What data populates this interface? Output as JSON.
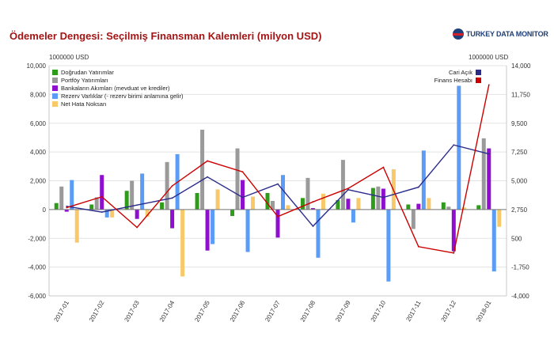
{
  "title": "Ödemeler Dengesi: Seçilmiş Finansman Kalemleri (milyon USD)",
  "brand": "TURKEY DATA MONITOR",
  "chart_data": {
    "type": "bar",
    "categories": [
      "2017-01",
      "2017-02",
      "2017-03",
      "2017-04",
      "2017-05",
      "2017-06",
      "2017-07",
      "2017-08",
      "2017-09",
      "2017-10",
      "2017-11",
      "2017-12",
      "2018-01"
    ],
    "left_axis": {
      "unit_label": "1000000 USD",
      "ylim": [
        -6000,
        10000
      ],
      "ticks": [
        -6000,
        -4000,
        -2000,
        0,
        2000,
        4000,
        6000,
        8000,
        10000
      ],
      "tick_labels": [
        "-6,000",
        "-4,000",
        "-2,000",
        "0",
        "2,000",
        "4,000",
        "6,000",
        "8,000",
        "10,000"
      ]
    },
    "right_axis": {
      "unit_label": "1000000 USD",
      "ylim": [
        -4000,
        14000
      ],
      "ticks": [
        -4000,
        -1750,
        500,
        2750,
        5000,
        7250,
        9500,
        11750,
        14000
      ],
      "tick_labels": [
        "-4,000",
        "-1,750",
        "500",
        "2,750",
        "5,000",
        "7,250",
        "9,500",
        "11,750",
        "14,000"
      ]
    },
    "series": [
      {
        "name": "Doğrudan Yatırımlar",
        "color": "#2e9b1a",
        "values": [
          450,
          350,
          1300,
          500,
          1150,
          -450,
          1150,
          800,
          650,
          1500,
          350,
          500,
          300
        ]
      },
      {
        "name": "Portföy Yatırımları",
        "color": "#9a9a9a",
        "values": [
          1600,
          850,
          2000,
          3300,
          5550,
          4250,
          600,
          2200,
          3450,
          1600,
          -1350,
          200,
          4950
        ]
      },
      {
        "name": "Bankaların Akımları (mevduat ve krediler)",
        "color": "#8f0fcf",
        "values": [
          -150,
          2400,
          -650,
          -1300,
          -2850,
          2050,
          -1950,
          100,
          750,
          1450,
          400,
          -2900,
          4250
        ]
      },
      {
        "name": "Rezerv Varlıklar (- rezerv birimi anlamına gelir)",
        "color": "#5b9cf6",
        "values": [
          2050,
          -550,
          2500,
          3850,
          -2400,
          -2950,
          2400,
          -3350,
          -900,
          -5000,
          4100,
          8600,
          -4300
        ]
      },
      {
        "name": "Net Hata Noksan",
        "color": "#f7c96a",
        "values": [
          -2300,
          -550,
          -500,
          -4650,
          1400,
          900,
          300,
          1100,
          800,
          2800,
          800,
          150,
          -1200
        ]
      }
    ],
    "line_series": [
      {
        "name": "Cari Açık",
        "color": "#2b2b8c",
        "axis": "right",
        "values": [
          3000,
          2550,
          3100,
          3650,
          5300,
          3700,
          4750,
          1450,
          4300,
          3700,
          4500,
          7800,
          7100
        ]
      },
      {
        "name": "Finans Hesabı",
        "color": "#cc0000",
        "axis": "right",
        "values": [
          2900,
          3750,
          1350,
          4600,
          6550,
          5700,
          2200,
          3350,
          4400,
          6050,
          -150,
          -650,
          12500
        ]
      }
    ],
    "grid": true,
    "legend_position": [
      "top-left",
      "top-right"
    ]
  }
}
